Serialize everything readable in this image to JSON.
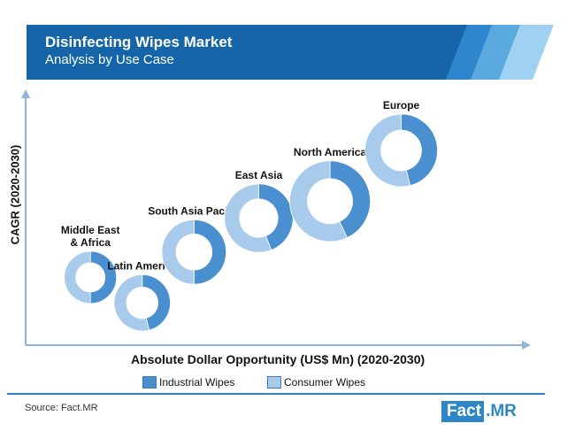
{
  "header": {
    "title": "Disinfecting Wipes Market",
    "subtitle": "Analysis by Use Case"
  },
  "footer": {
    "source": "Source: Fact.MR",
    "logo_left": "Fact",
    "logo_right": ".MR"
  },
  "colors": {
    "banner": "#1565a8",
    "industrial": "#4a90d0",
    "consumer": "#a9cbeb",
    "axis": "#8fb4dc"
  },
  "chart_data": {
    "type": "bubble",
    "xlabel": "Absolute Dollar Opportunity (US$ Mn) (2020-2030)",
    "ylabel": "CAGR (2020-2030)",
    "legend": {
      "position": "bottom",
      "entries": [
        {
          "name": "Industrial Wipes",
          "color": "#4a90d0"
        },
        {
          "name": "Consumer Wipes",
          "color": "#a9cbeb"
        }
      ]
    },
    "grid": false,
    "axis_ticks": false,
    "series": [
      {
        "name": "Industrial Wipes",
        "values": [
          0.5,
          0.46,
          0.5,
          0.44,
          0.43,
          0.46
        ]
      },
      {
        "name": "Consumer Wipes",
        "values": [
          0.5,
          0.54,
          0.5,
          0.56,
          0.57,
          0.54
        ]
      }
    ],
    "regions": [
      {
        "label": "Middle East\n& Africa",
        "x": 1,
        "y": 1.6,
        "size": 0.25
      },
      {
        "label": "Latin America",
        "x": 1.8,
        "y": 1.0,
        "size": 0.3
      },
      {
        "label": "South Asia Pacific",
        "x": 2.6,
        "y": 2.2,
        "size": 0.4
      },
      {
        "label": "East Asia",
        "x": 3.6,
        "y": 3.0,
        "size": 0.45
      },
      {
        "label": "North America",
        "x": 4.7,
        "y": 3.4,
        "size": 0.6
      },
      {
        "label": "Europe",
        "x": 5.8,
        "y": 4.6,
        "size": 0.5
      }
    ],
    "xlim": [
      0,
      7.5
    ],
    "ylim": [
      0,
      6
    ]
  }
}
